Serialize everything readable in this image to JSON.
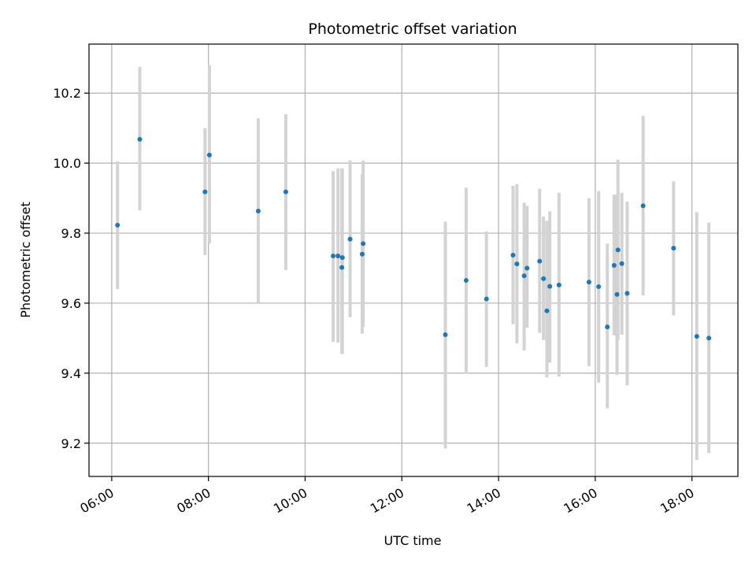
{
  "chart_data": {
    "type": "scatter",
    "title": "Photometric offset variation",
    "xlabel": "UTC time",
    "ylabel": "Photometric offset",
    "x_unit": "hours UTC",
    "xlim": [
      5.53,
      18.95
    ],
    "ylim": [
      9.105,
      10.34
    ],
    "xticks": [
      {
        "value": 6,
        "label": "06:00"
      },
      {
        "value": 8,
        "label": "08:00"
      },
      {
        "value": 10,
        "label": "10:00"
      },
      {
        "value": 12,
        "label": "12:00"
      },
      {
        "value": 14,
        "label": "14:00"
      },
      {
        "value": 16,
        "label": "16:00"
      },
      {
        "value": 18,
        "label": "18:00"
      }
    ],
    "yticks": [
      {
        "value": 9.2,
        "label": "9.2"
      },
      {
        "value": 9.4,
        "label": "9.4"
      },
      {
        "value": 9.6,
        "label": "9.6"
      },
      {
        "value": 9.8,
        "label": "9.8"
      },
      {
        "value": 10.0,
        "label": "10.0"
      },
      {
        "value": 10.2,
        "label": "10.2"
      }
    ],
    "grid": true,
    "colors": {
      "point": "#1f77b4",
      "errorbar": "#d3d3d3",
      "grid": "#b0b0b0"
    },
    "points": [
      {
        "x": 6.12,
        "y": 9.823,
        "ylow": 9.64,
        "yhigh": 10.005
      },
      {
        "x": 6.58,
        "y": 10.068,
        "ylow": 9.865,
        "yhigh": 10.275
      },
      {
        "x": 7.93,
        "y": 9.918,
        "ylow": 9.737,
        "yhigh": 10.1
      },
      {
        "x": 8.02,
        "y": 10.023,
        "ylow": 9.77,
        "yhigh": 10.28
      },
      {
        "x": 9.03,
        "y": 9.863,
        "ylow": 9.6,
        "yhigh": 10.128
      },
      {
        "x": 9.6,
        "y": 9.918,
        "ylow": 9.695,
        "yhigh": 10.14
      },
      {
        "x": 10.58,
        "y": 9.735,
        "ylow": 9.49,
        "yhigh": 9.977
      },
      {
        "x": 10.68,
        "y": 9.735,
        "ylow": 9.487,
        "yhigh": 9.985
      },
      {
        "x": 10.76,
        "y": 9.702,
        "ylow": 9.455,
        "yhigh": 9.985
      },
      {
        "x": 10.77,
        "y": 9.73,
        "ylow": 9.455,
        "yhigh": 9.985
      },
      {
        "x": 10.93,
        "y": 9.783,
        "ylow": 9.56,
        "yhigh": 10.008
      },
      {
        "x": 11.18,
        "y": 9.74,
        "ylow": 9.513,
        "yhigh": 9.968
      },
      {
        "x": 11.2,
        "y": 9.77,
        "ylow": 9.533,
        "yhigh": 10.007
      },
      {
        "x": 12.9,
        "y": 9.51,
        "ylow": 9.185,
        "yhigh": 9.833
      },
      {
        "x": 13.33,
        "y": 9.665,
        "ylow": 9.398,
        "yhigh": 9.93
      },
      {
        "x": 13.75,
        "y": 9.612,
        "ylow": 9.418,
        "yhigh": 9.805
      },
      {
        "x": 14.3,
        "y": 9.737,
        "ylow": 9.54,
        "yhigh": 9.935
      },
      {
        "x": 14.38,
        "y": 9.712,
        "ylow": 9.485,
        "yhigh": 9.94
      },
      {
        "x": 14.53,
        "y": 9.678,
        "ylow": 9.465,
        "yhigh": 9.887
      },
      {
        "x": 14.59,
        "y": 9.7,
        "ylow": 9.53,
        "yhigh": 9.878
      },
      {
        "x": 14.85,
        "y": 9.72,
        "ylow": 9.515,
        "yhigh": 9.927
      },
      {
        "x": 14.93,
        "y": 9.67,
        "ylow": 9.495,
        "yhigh": 9.847
      },
      {
        "x": 15.0,
        "y": 9.578,
        "ylow": 9.388,
        "yhigh": 9.835
      },
      {
        "x": 15.06,
        "y": 9.648,
        "ylow": 9.43,
        "yhigh": 9.862
      },
      {
        "x": 15.25,
        "y": 9.652,
        "ylow": 9.39,
        "yhigh": 9.915
      },
      {
        "x": 15.87,
        "y": 9.66,
        "ylow": 9.42,
        "yhigh": 9.9
      },
      {
        "x": 16.07,
        "y": 9.647,
        "ylow": 9.373,
        "yhigh": 9.92
      },
      {
        "x": 16.25,
        "y": 9.532,
        "ylow": 9.3,
        "yhigh": 9.77
      },
      {
        "x": 16.39,
        "y": 9.708,
        "ylow": 9.508,
        "yhigh": 9.91
      },
      {
        "x": 16.45,
        "y": 9.625,
        "ylow": 9.395,
        "yhigh": 9.91
      },
      {
        "x": 16.47,
        "y": 9.752,
        "ylow": 9.495,
        "yhigh": 10.01
      },
      {
        "x": 16.55,
        "y": 9.713,
        "ylow": 9.51,
        "yhigh": 9.915
      },
      {
        "x": 16.66,
        "y": 9.628,
        "ylow": 9.365,
        "yhigh": 9.89
      },
      {
        "x": 16.99,
        "y": 9.878,
        "ylow": 9.622,
        "yhigh": 10.135
      },
      {
        "x": 17.62,
        "y": 9.757,
        "ylow": 9.565,
        "yhigh": 9.948
      },
      {
        "x": 18.1,
        "y": 9.505,
        "ylow": 9.152,
        "yhigh": 9.86
      },
      {
        "x": 18.35,
        "y": 9.5,
        "ylow": 9.172,
        "yhigh": 9.83
      }
    ]
  }
}
